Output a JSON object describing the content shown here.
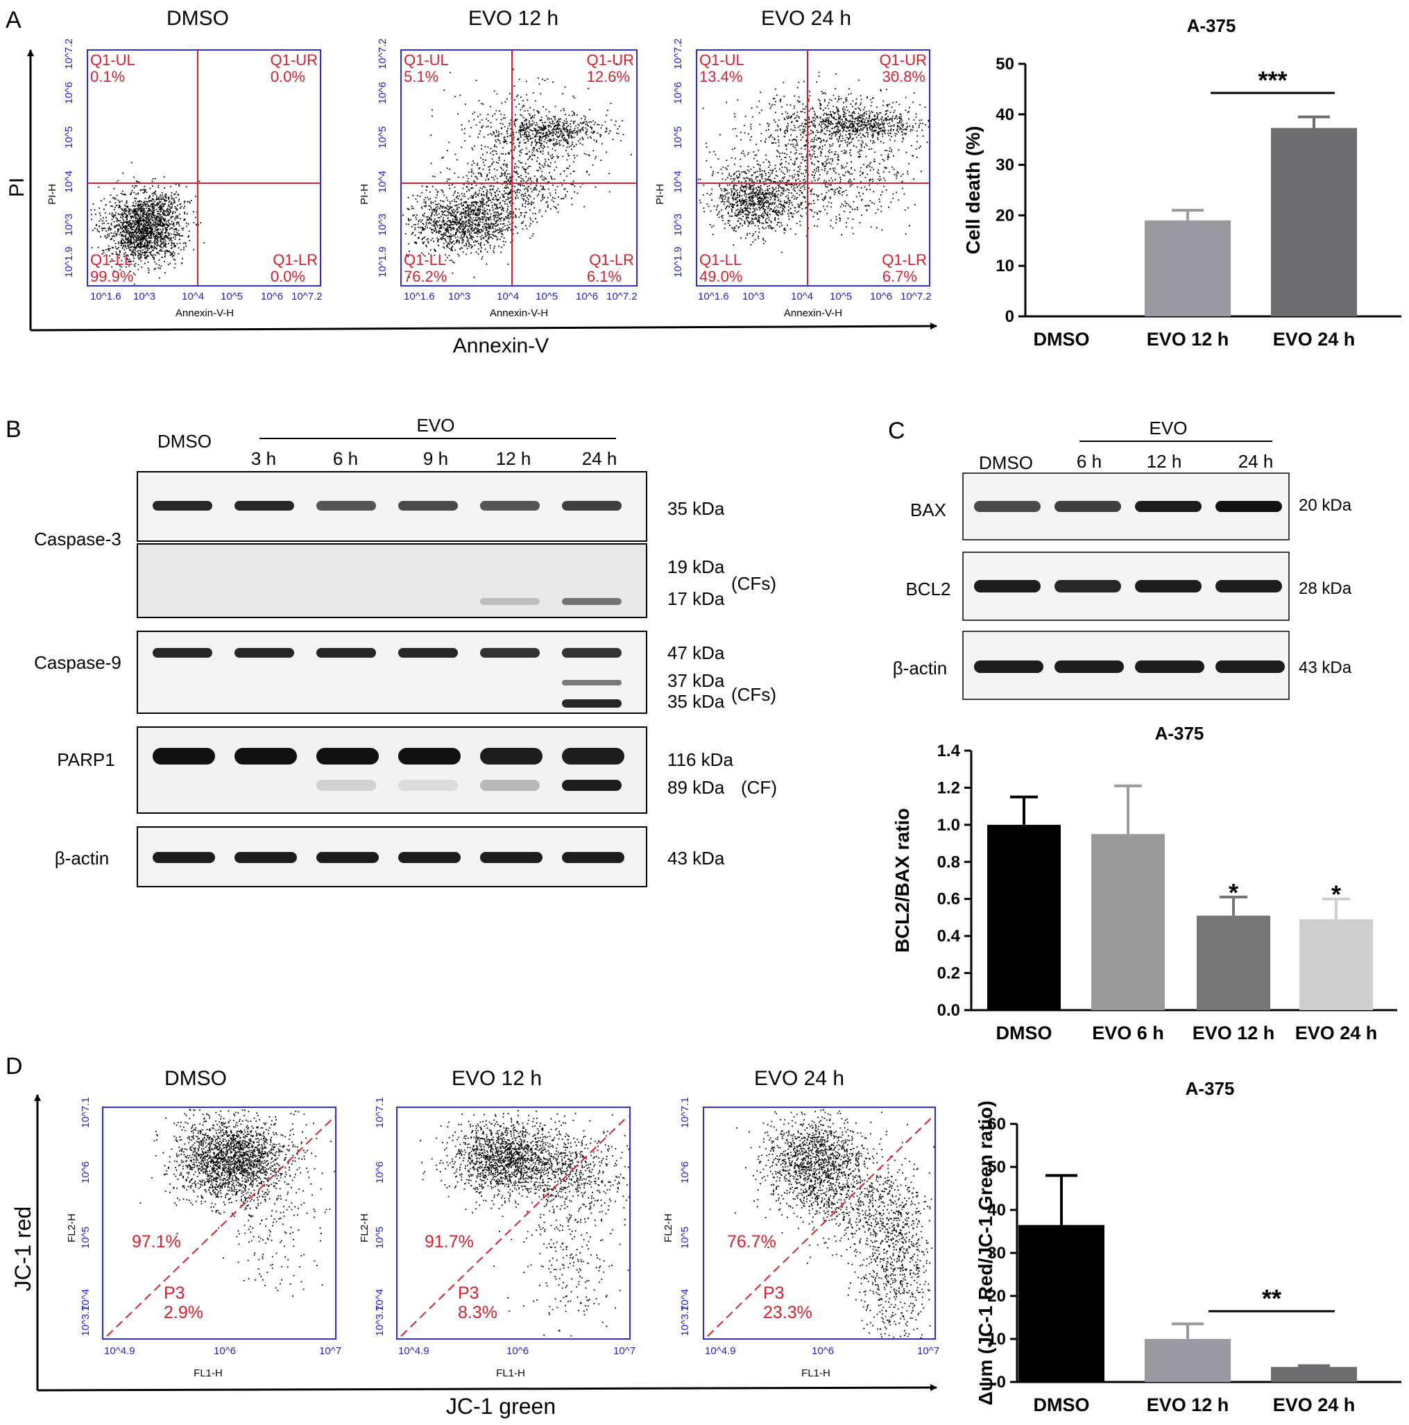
{
  "panels": {
    "A": {
      "letter": "A",
      "flow": {
        "y_axis_label": "PI",
        "x_axis_label": "Annexin-V",
        "inner_ylabel": "PI-H",
        "inner_xlabel": "Annexin-V-H",
        "x_ticks": [
          "10^1.6",
          "10^3",
          "10^4",
          "10^5",
          "10^6",
          "10^7.2"
        ],
        "y_ticks": [
          "10^1.9",
          "10^3",
          "10^4",
          "10^5",
          "10^6",
          "10^7.2"
        ],
        "plots": [
          {
            "title": "DMSO",
            "UL": [
              "Q1-UL",
              "0.1%"
            ],
            "UR": [
              "Q1-UR",
              "0.0%"
            ],
            "LL": [
              "Q1-LL",
              "99.9%"
            ],
            "LR": [
              "Q1-LR",
              "0.0%"
            ]
          },
          {
            "title": "EVO 12 h",
            "UL": [
              "Q1-UL",
              "5.1%"
            ],
            "UR": [
              "Q1-UR",
              "12.6%"
            ],
            "LL": [
              "Q1-LL",
              "76.2%"
            ],
            "LR": [
              "Q1-LR",
              "6.1%"
            ]
          },
          {
            "title": "EVO 24 h",
            "UL": [
              "Q1-UL",
              "13.4%"
            ],
            "UR": [
              "Q1-UR",
              "30.8%"
            ],
            "LL": [
              "Q1-LL",
              "49.0%"
            ],
            "LR": [
              "Q1-LR",
              "6.7%"
            ]
          }
        ]
      }
    },
    "B": {
      "letter": "B",
      "evo_label": "EVO",
      "lanes": [
        "DMSO",
        "3 h",
        "6 h",
        "9 h",
        "12 h",
        "24 h"
      ],
      "blots": [
        {
          "name": "Caspase-3",
          "sizes": [
            "35 kDa"
          ]
        },
        {
          "name": "",
          "sizes": [
            "19 kDa",
            "17 kDa"
          ],
          "note": "(CFs)"
        },
        {
          "name": "Caspase-9",
          "sizes": [
            "47 kDa",
            "37 kDa",
            "35 kDa"
          ],
          "note": "(CFs)"
        },
        {
          "name": "PARP1",
          "sizes": [
            "116 kDa",
            "89 kDa"
          ],
          "note": "(CF)"
        },
        {
          "name": "β-actin",
          "sizes": [
            "43 kDa"
          ]
        }
      ]
    },
    "C": {
      "letter": "C",
      "evo_label": "EVO",
      "lanes": [
        "DMSO",
        "6 h",
        "12 h",
        "24 h"
      ],
      "blots": [
        {
          "name": "BAX",
          "size": "20 kDa"
        },
        {
          "name": "BCL2",
          "size": "28 kDa"
        },
        {
          "name": "β-actin",
          "size": "43 kDa"
        }
      ]
    },
    "D": {
      "letter": "D",
      "flow": {
        "y_axis_label": "JC-1 red",
        "x_axis_label": "JC-1 green",
        "inner_ylabel": "FL2-H",
        "inner_xlabel": "FL1-H",
        "x_ticks": [
          "10^4.9",
          "10^6",
          "10^7"
        ],
        "y_ticks": [
          "10^3.7",
          "10^4",
          "10^5",
          "10^6",
          "10^7.1"
        ],
        "gate_label": "P3",
        "plots": [
          {
            "title": "DMSO",
            "upper": "97.1%",
            "lower": "2.9%"
          },
          {
            "title": "EVO 12 h",
            "upper": "91.7%",
            "lower": "8.3%"
          },
          {
            "title": "EVO 24 h",
            "upper": "76.7%",
            "lower": "23.3%"
          }
        ]
      }
    }
  },
  "chart_data": [
    {
      "type": "bar",
      "title": "A-375",
      "ylabel": "Cell death (%)",
      "categories": [
        "DMSO",
        "EVO 12 h",
        "EVO 24 h"
      ],
      "values": [
        0,
        19,
        37.3
      ],
      "errors": [
        0,
        2,
        2.2
      ],
      "ylim": [
        0,
        50
      ],
      "yticks": [
        0,
        10,
        20,
        30,
        40,
        50
      ],
      "colors": [
        "#9a9aa0",
        "#9a9aa0",
        "#6e6e70"
      ],
      "significance": [
        {
          "from": 1,
          "to": 2,
          "label": "***"
        }
      ]
    },
    {
      "type": "bar",
      "title": "A-375",
      "ylabel": "BCL2/BAX ratio",
      "categories": [
        "DMSO",
        "EVO 6 h",
        "EVO 12 h",
        "EVO 24 h"
      ],
      "values": [
        1.0,
        0.95,
        0.51,
        0.49
      ],
      "errors": [
        0.15,
        0.26,
        0.1,
        0.11
      ],
      "ylim": [
        0,
        1.4
      ],
      "yticks": [
        "0.0",
        "0.2",
        "0.4",
        "0.6",
        "0.8",
        "1.0",
        "1.2",
        "1.4"
      ],
      "colors": [
        "#000000",
        "#9a9a9a",
        "#767676",
        "#cecece"
      ],
      "markers": [
        {
          "index": 2,
          "label": "*"
        },
        {
          "index": 3,
          "label": "*"
        }
      ]
    },
    {
      "type": "bar",
      "title": "A-375",
      "ylabel": "Δψm (JC-1 Red/JC-1 Green ratio)",
      "categories": [
        "DMSO",
        "EVO 12 h",
        "EVO 24 h"
      ],
      "values": [
        36.5,
        10,
        3.5
      ],
      "errors": [
        11.5,
        3.5,
        0.3
      ],
      "ylim": [
        0,
        60
      ],
      "yticks": [
        0,
        10,
        20,
        30,
        40,
        50,
        60
      ],
      "colors": [
        "#000000",
        "#9a9aa0",
        "#6e6e70"
      ],
      "significance": [
        {
          "from": 1,
          "to": 2,
          "label": "**"
        }
      ]
    }
  ]
}
